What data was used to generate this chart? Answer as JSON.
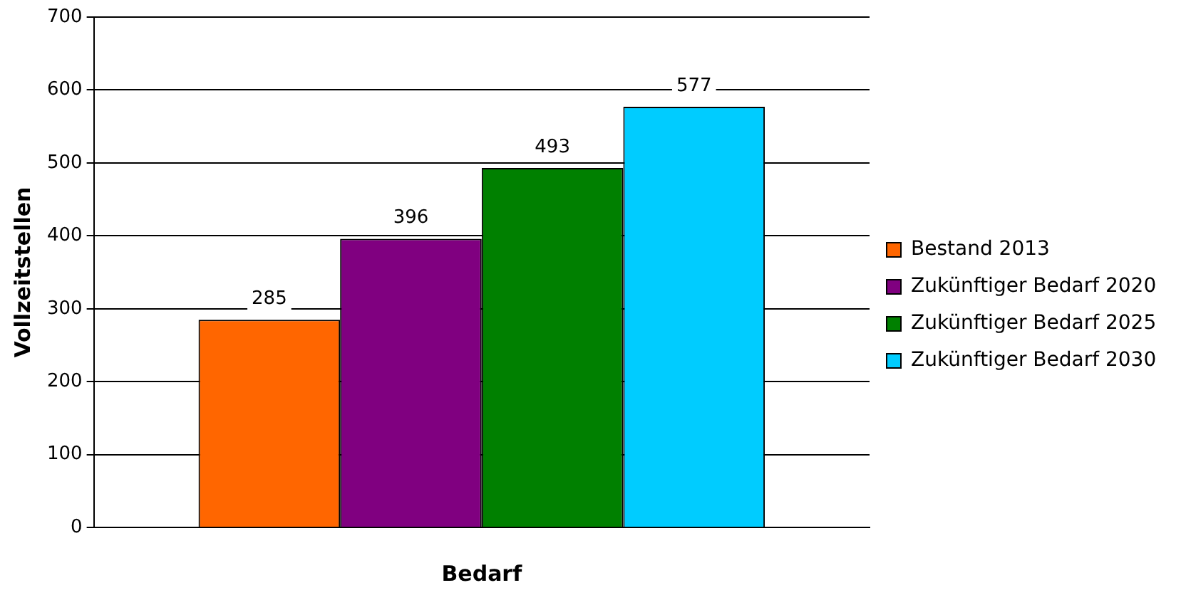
{
  "chart_data": {
    "type": "bar",
    "xlabel": "Bedarf",
    "ylabel": "Vollzeitstellen",
    "categories": [
      null
    ],
    "series": [
      {
        "name": "Bestand 2013",
        "color": "#ff6600",
        "values": [
          285
        ]
      },
      {
        "name": "Zukünftiger Bedarf 2020",
        "color": "#800080",
        "values": [
          396
        ]
      },
      {
        "name": "Zukünftiger Bedarf 2025",
        "color": "#008000",
        "values": [
          493
        ]
      },
      {
        "name": "Zukünftiger Bedarf 2030",
        "color": "#00ccff",
        "values": [
          577
        ]
      }
    ],
    "ylim": [
      0,
      700
    ],
    "yticks": [
      0,
      100,
      200,
      300,
      400,
      500,
      600,
      700
    ],
    "grid": "y",
    "legend": "right",
    "data_labels": true
  }
}
